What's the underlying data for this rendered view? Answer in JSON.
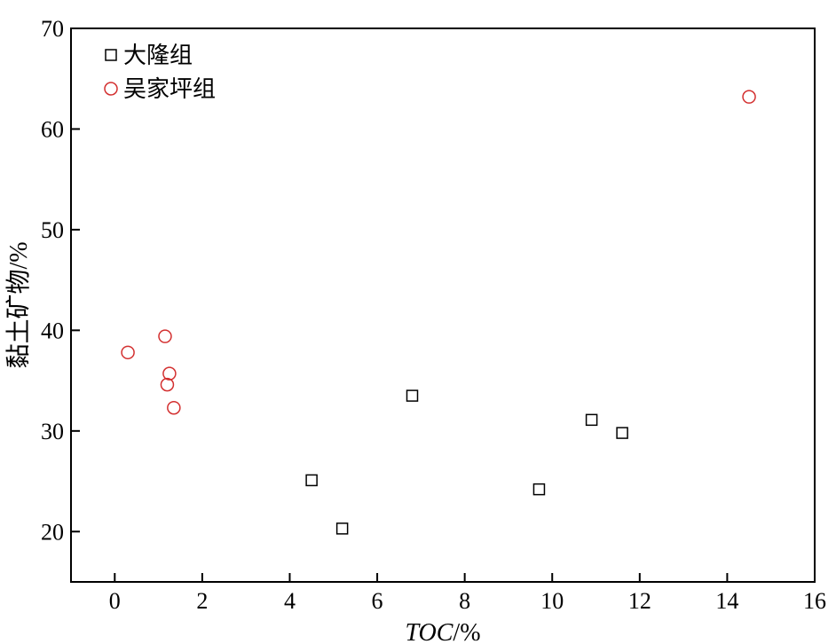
{
  "chart_data": {
    "type": "scatter",
    "xlabel": "TOC/%",
    "ylabel": "黏土矿物/%",
    "xlim": [
      -1,
      16
    ],
    "ylim": [
      15,
      70
    ],
    "x_ticks": [
      0,
      2,
      4,
      6,
      8,
      10,
      12,
      14,
      16
    ],
    "y_ticks": [
      20,
      30,
      40,
      50,
      60,
      70
    ],
    "legend_position": "top-left",
    "grid": false,
    "series": [
      {
        "name": "大隆组",
        "marker": "square",
        "color": "#000000",
        "points": [
          {
            "x": 4.5,
            "y": 25.1
          },
          {
            "x": 5.2,
            "y": 20.3
          },
          {
            "x": 6.8,
            "y": 33.5
          },
          {
            "x": 9.7,
            "y": 24.2
          },
          {
            "x": 10.9,
            "y": 31.1
          },
          {
            "x": 11.6,
            "y": 29.8
          }
        ]
      },
      {
        "name": "吴家坪组",
        "marker": "circle",
        "color": "#d32f2f",
        "points": [
          {
            "x": 0.3,
            "y": 37.8
          },
          {
            "x": 1.15,
            "y": 39.4
          },
          {
            "x": 1.25,
            "y": 35.7
          },
          {
            "x": 1.2,
            "y": 34.6
          },
          {
            "x": 1.35,
            "y": 32.3
          },
          {
            "x": 14.5,
            "y": 63.2
          }
        ]
      }
    ]
  }
}
